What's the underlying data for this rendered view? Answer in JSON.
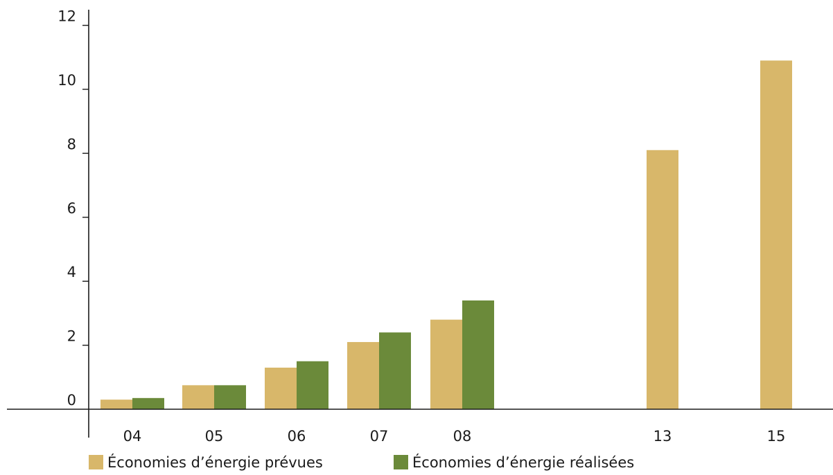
{
  "chart_data": {
    "type": "bar",
    "categories": [
      "04",
      "05",
      "06",
      "07",
      "08",
      "13",
      "15"
    ],
    "series": [
      {
        "name": "Économies d’énergie prévues",
        "color": "#d8b76a",
        "values": [
          0.3,
          0.75,
          1.3,
          2.1,
          2.8,
          8.1,
          10.9
        ]
      },
      {
        "name": "Économies d’énergie réalisées",
        "color": "#6b8a3a",
        "values": [
          0.35,
          0.75,
          1.5,
          2.4,
          3.4,
          null,
          null
        ]
      }
    ],
    "y_ticks": [
      "0",
      "2",
      "4",
      "6",
      "8",
      "10",
      "12"
    ],
    "ylim": [
      0,
      12.6
    ],
    "title": "",
    "xlabel": "",
    "ylabel": "",
    "grid": false,
    "legend_position": "bottom-left"
  }
}
